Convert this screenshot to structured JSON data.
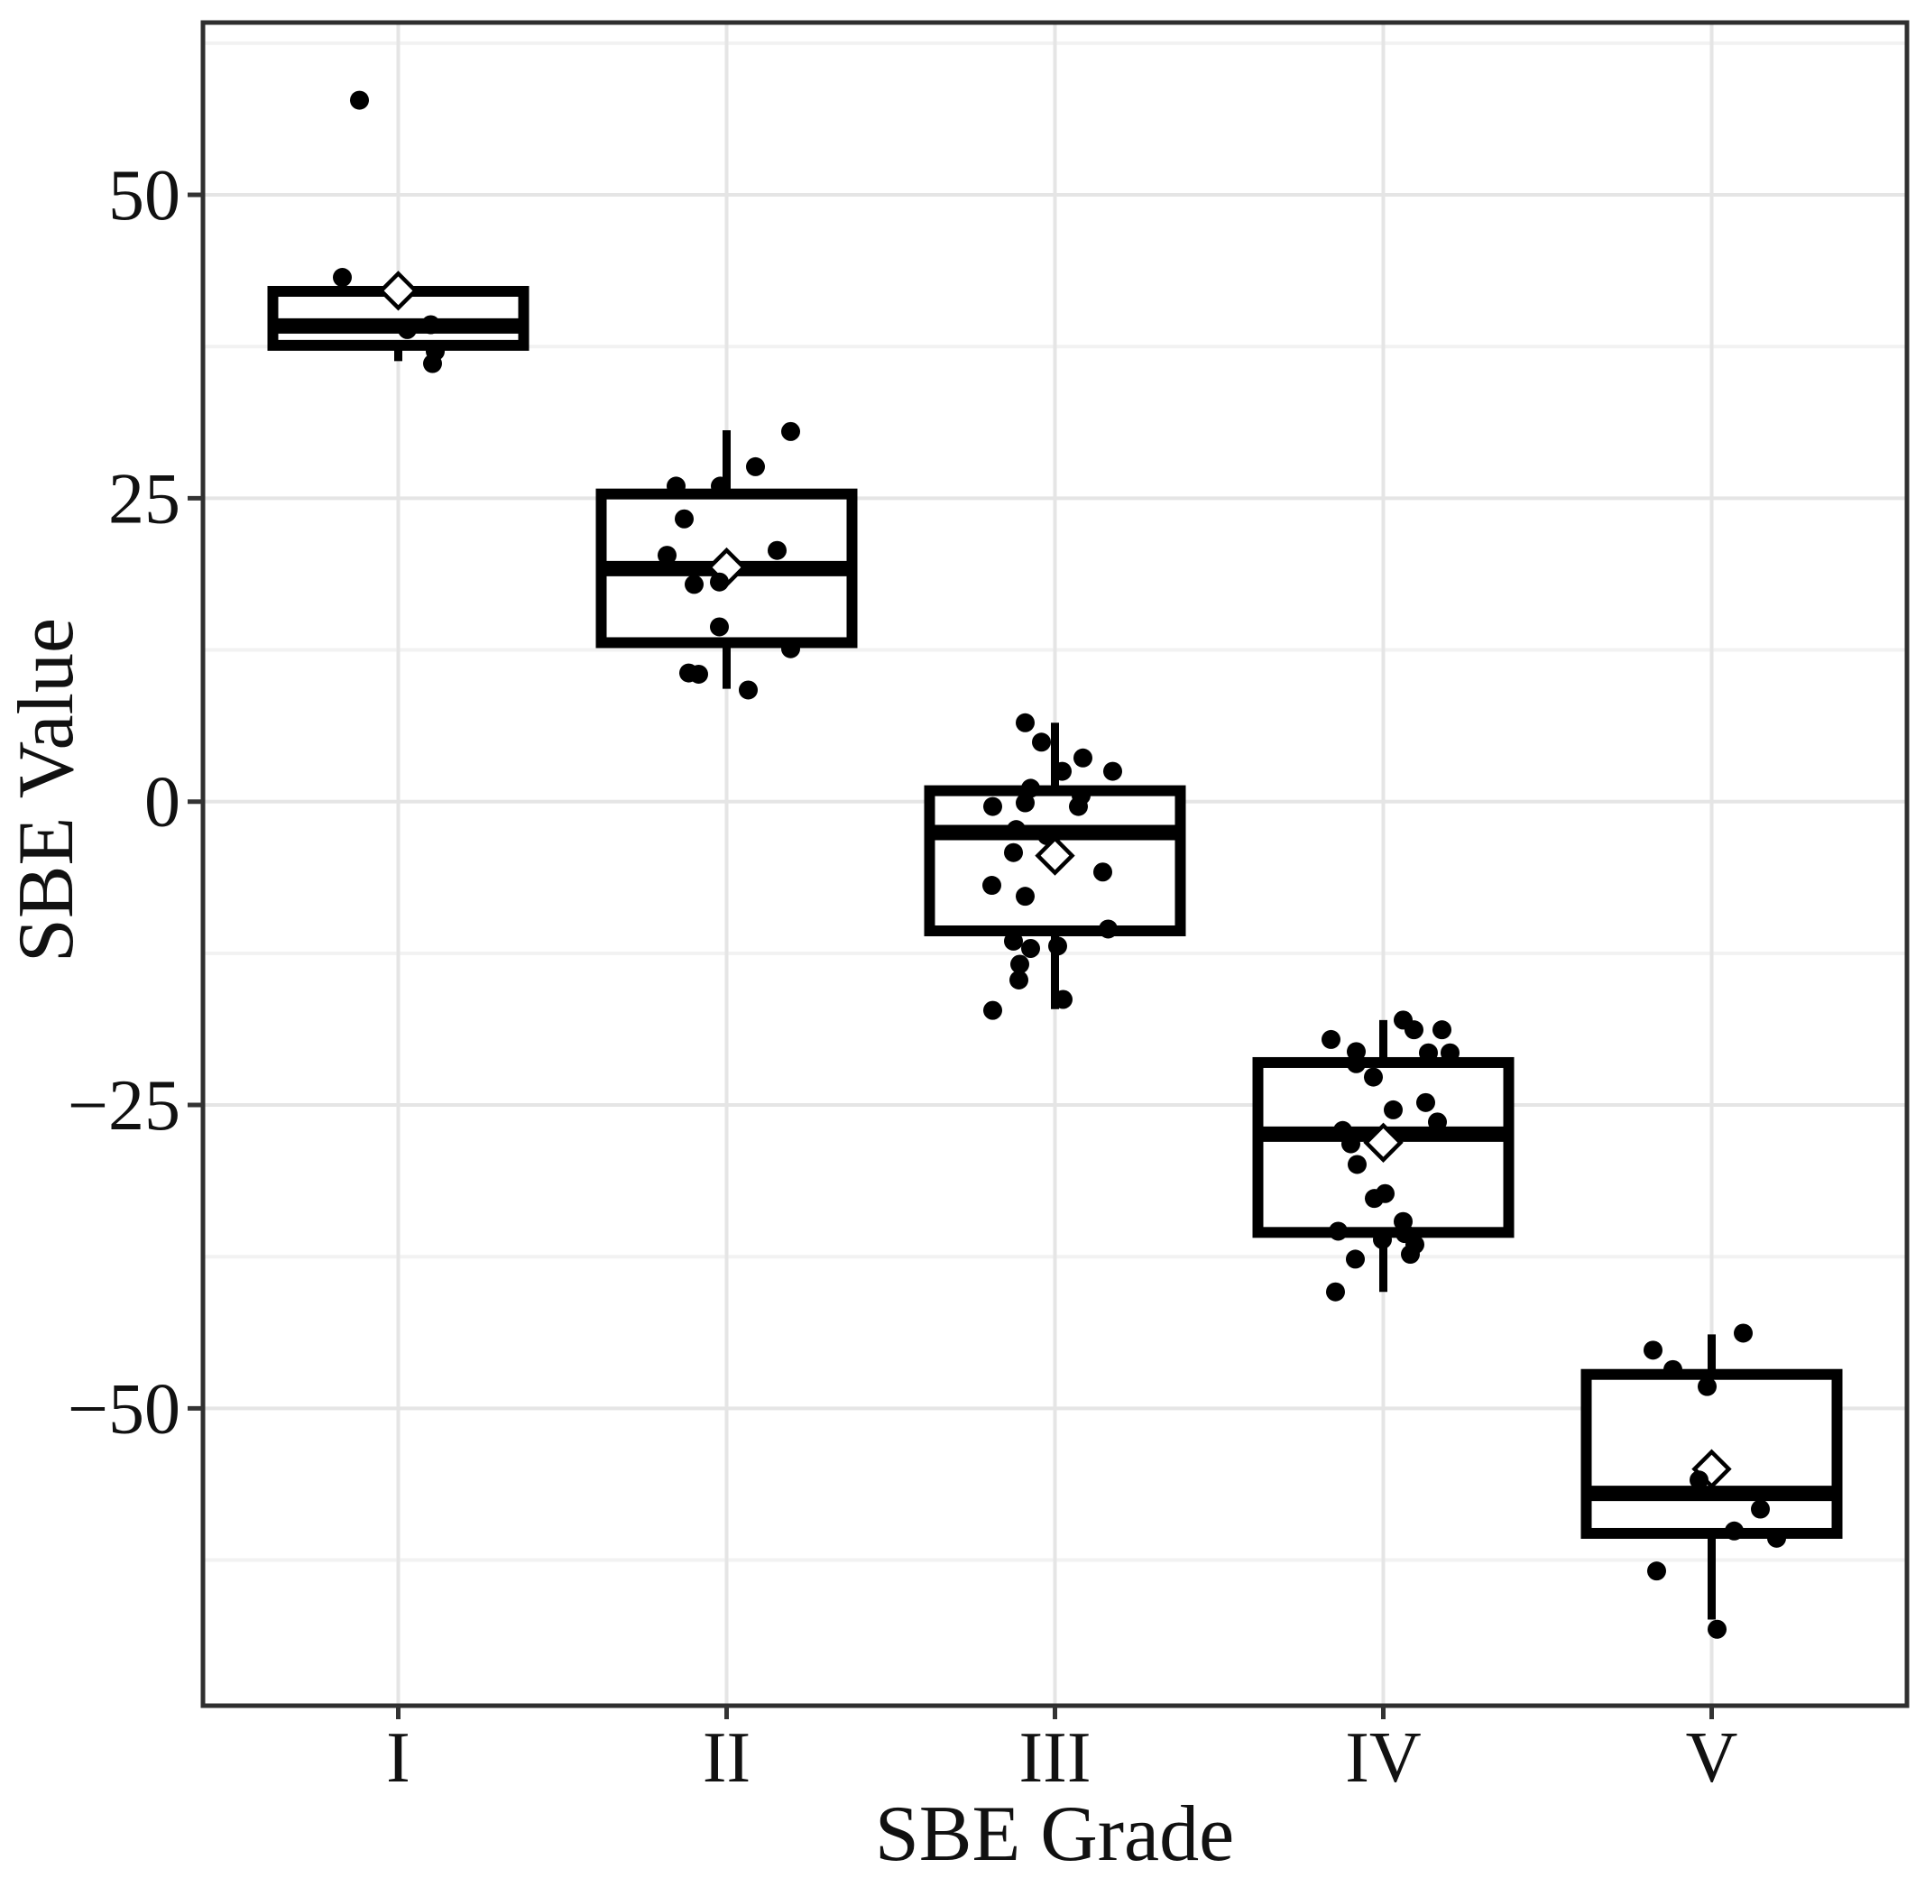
{
  "figure": {
    "description": "Boxplot of SBE Value by SBE Grade with jittered data points and open-diamond mean markers"
  },
  "colors": {
    "point": "#000000",
    "box_line": "#000000",
    "mean_fill": "#ffffff",
    "panel_border": "#2f2f2f",
    "tick_mark": "#333333",
    "text": "#111111",
    "grid_major": "#e5e5e5",
    "grid_minor": "#f2f2f2",
    "background": "#ffffff"
  },
  "chart_data": {
    "type": "boxplot",
    "title": "",
    "xlabel": "SBE Grade",
    "ylabel": "SBE Value",
    "categories": [
      "I",
      "II",
      "III",
      "IV",
      "V"
    ],
    "ylim": [
      -74.5,
      64.2
    ],
    "y_ticks": [
      {
        "value": 50,
        "label": "50"
      },
      {
        "value": 25,
        "label": "25"
      },
      {
        "value": 0,
        "label": "0"
      },
      {
        "value": -25,
        "label": "−25"
      },
      {
        "value": -50,
        "label": "−50"
      }
    ],
    "y_minor_ticks": [
      62.5,
      37.5,
      12.5,
      -12.5,
      -37.5,
      -62.5
    ],
    "grid": true,
    "legend_position": "none",
    "mean_marker": "open-diamond",
    "series": [
      {
        "grade": "I",
        "q1": 37.6,
        "median": 39.2,
        "q3": 42.05,
        "whisker_low": 36.3,
        "whisker_high": 42.05,
        "mean": 42.1,
        "outliers": [
          57.8
        ],
        "points": [
          [
            57.8,
            -43
          ],
          [
            43.2,
            -62
          ],
          [
            39.3,
            36
          ],
          [
            38.9,
            10
          ],
          [
            37.1,
            41
          ],
          [
            36.1,
            38
          ]
        ]
      },
      {
        "grade": "II",
        "q1": 13.1,
        "median": 19.2,
        "q3": 25.35,
        "whisker_low": 9.3,
        "whisker_high": 30.6,
        "mean": 19.3,
        "outliers": [],
        "points": [
          [
            30.5,
            71
          ],
          [
            27.6,
            32
          ],
          [
            26.0,
            -56
          ],
          [
            26.0,
            -7
          ],
          [
            23.3,
            -47
          ],
          [
            20.7,
            56
          ],
          [
            20.3,
            -66
          ],
          [
            18.1,
            -8
          ],
          [
            17.9,
            -36
          ],
          [
            14.4,
            -8
          ],
          [
            12.6,
            71
          ],
          [
            10.6,
            -42
          ],
          [
            10.5,
            -31
          ],
          [
            9.2,
            24
          ]
        ]
      },
      {
        "grade": "III",
        "q1": -10.65,
        "median": -2.55,
        "q3": 0.9,
        "whisker_low": -17.1,
        "whisker_high": 6.5,
        "mean": -4.45,
        "outliers": [],
        "points": [
          [
            6.5,
            -33
          ],
          [
            4.9,
            -15
          ],
          [
            3.6,
            31
          ],
          [
            2.5,
            8
          ],
          [
            2.5,
            64
          ],
          [
            1.1,
            -27
          ],
          [
            0.5,
            29
          ],
          [
            -0.1,
            -33
          ],
          [
            -0.4,
            -69
          ],
          [
            -0.4,
            26
          ],
          [
            -2.3,
            -43
          ],
          [
            -2.8,
            -9
          ],
          [
            -4.2,
            -46
          ],
          [
            -5.8,
            53
          ],
          [
            -6.9,
            -70
          ],
          [
            -7.8,
            -33
          ],
          [
            -10.5,
            59
          ],
          [
            -11.5,
            -46
          ],
          [
            -11.9,
            3
          ],
          [
            -12.1,
            -27
          ],
          [
            -13.4,
            -39
          ],
          [
            -14.7,
            -40
          ],
          [
            -16.3,
            9
          ],
          [
            -17.2,
            -69
          ]
        ]
      },
      {
        "grade": "IV",
        "q1": -35.5,
        "median": -27.4,
        "q3": -21.5,
        "whisker_low": -40.4,
        "whisker_high": -18.0,
        "mean": -28.1,
        "outliers": [],
        "points": [
          [
            -18.0,
            22
          ],
          [
            -18.8,
            34
          ],
          [
            -18.8,
            65
          ],
          [
            -19.6,
            -58
          ],
          [
            -20.6,
            -30
          ],
          [
            -20.7,
            50
          ],
          [
            -20.7,
            74
          ],
          [
            -21.6,
            -30
          ],
          [
            -22.7,
            -11
          ],
          [
            -24.8,
            47
          ],
          [
            -25.4,
            11
          ],
          [
            -26.4,
            60
          ],
          [
            -27.1,
            -45
          ],
          [
            -28.2,
            -36
          ],
          [
            -29.9,
            -29
          ],
          [
            -32.3,
            2
          ],
          [
            -32.7,
            -10
          ],
          [
            -34.6,
            22
          ],
          [
            -35.4,
            -50
          ],
          [
            -35.6,
            24
          ],
          [
            -36.1,
            -1
          ],
          [
            -36.5,
            35
          ],
          [
            -37.3,
            30
          ],
          [
            -37.7,
            -31
          ],
          [
            -40.4,
            -53
          ]
        ]
      },
      {
        "grade": "V",
        "q1": -60.3,
        "median": -57.0,
        "q3": -47.2,
        "whisker_low": -67.4,
        "whisker_high": -43.9,
        "mean": -55.0,
        "outliers": [],
        "points": [
          [
            -43.8,
            35
          ],
          [
            -45.2,
            -65
          ],
          [
            -46.8,
            -43
          ],
          [
            -48.2,
            -5
          ],
          [
            -55.9,
            -14
          ],
          [
            -58.3,
            54
          ],
          [
            -60.1,
            25
          ],
          [
            -60.7,
            72
          ],
          [
            -63.4,
            -61
          ],
          [
            -68.2,
            6
          ]
        ]
      }
    ]
  }
}
